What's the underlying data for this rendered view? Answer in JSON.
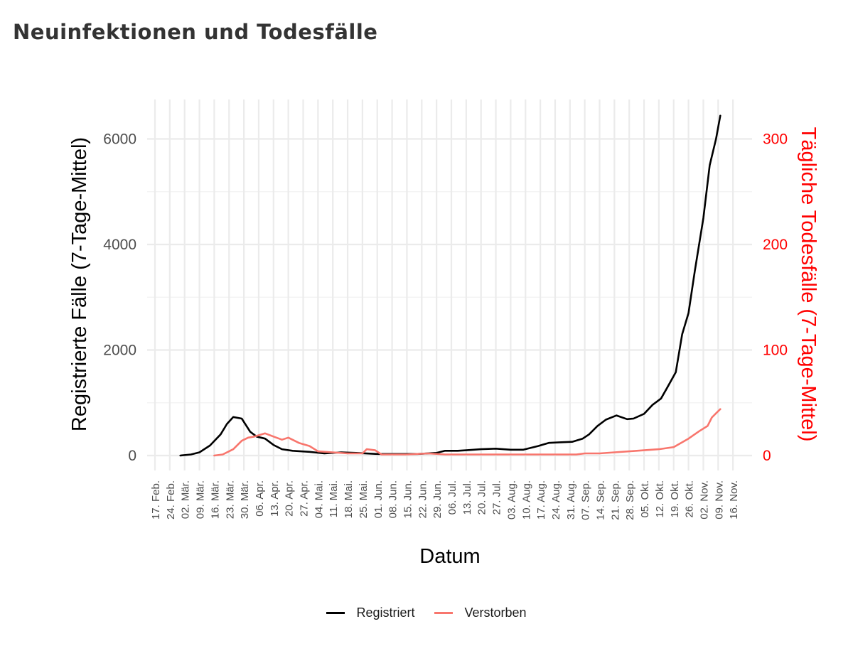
{
  "title": "Neuinfektionen und Todesfälle",
  "chart_data": {
    "type": "line",
    "title": "Neuinfektionen und Todesfälle",
    "xlabel": "Datum",
    "ylabel_left": "Registrierte Fälle (7-Tage-Mittel)",
    "ylabel_right": "Tägliche Todesfälle (7-Tage-Mittel)",
    "ylim_left": [
      0,
      6800
    ],
    "ylim_right": [
      0,
      340
    ],
    "left_ticks": [
      0,
      2000,
      4000,
      6000
    ],
    "right_ticks": [
      0,
      100,
      200,
      300
    ],
    "x_tick_labels": [
      "17. Feb.",
      "24. Feb.",
      "02. Mär.",
      "09. Mär.",
      "16. Mär.",
      "23. Mär.",
      "30. Mär.",
      "06. Apr.",
      "13. Apr.",
      "20. Apr.",
      "27. Apr.",
      "04. Mai.",
      "11. Mai.",
      "18. Mai.",
      "25. Mai.",
      "01. Jun.",
      "08. Jun.",
      "15. Jun.",
      "22. Jun.",
      "29. Jun.",
      "06. Jul.",
      "13. Jul.",
      "20. Jul.",
      "27. Jul.",
      "03. Aug.",
      "10. Aug.",
      "17. Aug.",
      "24. Aug.",
      "31. Aug.",
      "07. Sep.",
      "14. Sep.",
      "21. Sep.",
      "28. Sep.",
      "05. Okt.",
      "12. Okt.",
      "19. Okt.",
      "26. Okt.",
      "02. Nov.",
      "09. Nov.",
      "16. Nov."
    ],
    "grid": true,
    "legend_position": "bottom",
    "series": [
      {
        "name": "Registriert",
        "axis": "left",
        "color": "#000000",
        "points": [
          [
            "2020-02-29",
            0
          ],
          [
            "2020-03-05",
            20
          ],
          [
            "2020-03-09",
            60
          ],
          [
            "2020-03-14",
            190
          ],
          [
            "2020-03-19",
            400
          ],
          [
            "2020-03-22",
            600
          ],
          [
            "2020-03-25",
            730
          ],
          [
            "2020-03-29",
            700
          ],
          [
            "2020-04-02",
            450
          ],
          [
            "2020-04-05",
            360
          ],
          [
            "2020-04-09",
            320
          ],
          [
            "2020-04-13",
            200
          ],
          [
            "2020-04-17",
            120
          ],
          [
            "2020-04-22",
            90
          ],
          [
            "2020-04-30",
            70
          ],
          [
            "2020-05-07",
            40
          ],
          [
            "2020-05-15",
            60
          ],
          [
            "2020-05-22",
            50
          ],
          [
            "2020-06-01",
            30
          ],
          [
            "2020-06-10",
            30
          ],
          [
            "2020-06-20",
            30
          ],
          [
            "2020-06-29",
            50
          ],
          [
            "2020-07-03",
            90
          ],
          [
            "2020-07-09",
            90
          ],
          [
            "2020-07-13",
            100
          ],
          [
            "2020-07-20",
            120
          ],
          [
            "2020-07-27",
            130
          ],
          [
            "2020-08-03",
            110
          ],
          [
            "2020-08-09",
            110
          ],
          [
            "2020-08-16",
            180
          ],
          [
            "2020-08-21",
            240
          ],
          [
            "2020-08-26",
            250
          ],
          [
            "2020-09-01",
            260
          ],
          [
            "2020-09-06",
            320
          ],
          [
            "2020-09-09",
            400
          ],
          [
            "2020-09-13",
            560
          ],
          [
            "2020-09-17",
            680
          ],
          [
            "2020-09-22",
            760
          ],
          [
            "2020-09-27",
            690
          ],
          [
            "2020-09-30",
            700
          ],
          [
            "2020-10-05",
            790
          ],
          [
            "2020-10-09",
            960
          ],
          [
            "2020-10-13",
            1080
          ],
          [
            "2020-10-16",
            1290
          ],
          [
            "2020-10-20",
            1580
          ],
          [
            "2020-10-23",
            2300
          ],
          [
            "2020-10-26",
            2700
          ],
          [
            "2020-10-29",
            3500
          ],
          [
            "2020-11-02",
            4500
          ],
          [
            "2020-11-05",
            5500
          ],
          [
            "2020-11-08",
            6000
          ],
          [
            "2020-11-10",
            6440
          ]
        ]
      },
      {
        "name": "Verstorben",
        "axis": "right",
        "color": "#F8766D",
        "points": [
          [
            "2020-03-16",
            0
          ],
          [
            "2020-03-20",
            1
          ],
          [
            "2020-03-25",
            6
          ],
          [
            "2020-03-29",
            14
          ],
          [
            "2020-04-01",
            17
          ],
          [
            "2020-04-04",
            18
          ],
          [
            "2020-04-09",
            21
          ],
          [
            "2020-04-13",
            18
          ],
          [
            "2020-04-17",
            15
          ],
          [
            "2020-04-20",
            17
          ],
          [
            "2020-04-25",
            12
          ],
          [
            "2020-04-30",
            9
          ],
          [
            "2020-05-04",
            4
          ],
          [
            "2020-05-11",
            3
          ],
          [
            "2020-05-18",
            2
          ],
          [
            "2020-05-25",
            2
          ],
          [
            "2020-05-27",
            6
          ],
          [
            "2020-05-31",
            5
          ],
          [
            "2020-06-03",
            1
          ],
          [
            "2020-06-15",
            1
          ],
          [
            "2020-06-25",
            2
          ],
          [
            "2020-07-03",
            1
          ],
          [
            "2020-07-13",
            1
          ],
          [
            "2020-07-25",
            1
          ],
          [
            "2020-08-03",
            1
          ],
          [
            "2020-08-15",
            1
          ],
          [
            "2020-08-25",
            1
          ],
          [
            "2020-09-03",
            1
          ],
          [
            "2020-09-07",
            2
          ],
          [
            "2020-09-14",
            2
          ],
          [
            "2020-09-21",
            3
          ],
          [
            "2020-09-28",
            4
          ],
          [
            "2020-10-05",
            5
          ],
          [
            "2020-10-12",
            6
          ],
          [
            "2020-10-19",
            8
          ],
          [
            "2020-10-26",
            16
          ],
          [
            "2020-10-31",
            23
          ],
          [
            "2020-11-04",
            28
          ],
          [
            "2020-11-06",
            36
          ],
          [
            "2020-11-08",
            40
          ],
          [
            "2020-11-10",
            44
          ]
        ]
      }
    ]
  }
}
